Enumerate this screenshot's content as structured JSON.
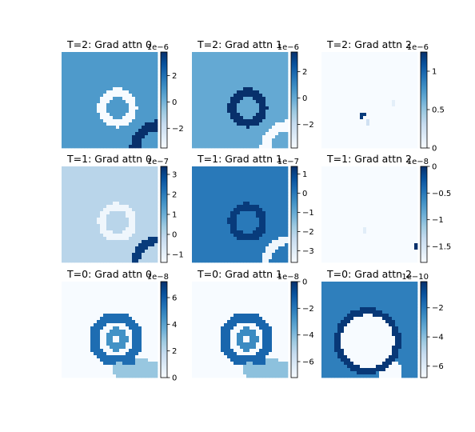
{
  "chart_data": [
    {
      "type": "heatmap",
      "title": "T=2: Grad attn 0",
      "offset": "1e−6",
      "cmap": "Blues",
      "vmin": -3.5,
      "vmax": 3.8,
      "base": 0.8,
      "ticks": [
        2,
        0,
        -2
      ],
      "features": [
        {
          "kind": "ring",
          "cx": 0.58,
          "cy": 0.58,
          "r": 0.16,
          "w": 0.045,
          "value": -3.5
        },
        {
          "kind": "arc",
          "cx": 1.04,
          "cy": 1.04,
          "r": 0.28,
          "w": 0.05,
          "value": 3.8
        }
      ]
    },
    {
      "type": "heatmap",
      "title": "T=2: Grad attn 1",
      "offset": "1e−6",
      "cmap": "Blues",
      "vmin": -3.8,
      "vmax": 3.5,
      "base": 0.0,
      "ticks": [
        2,
        0,
        -2
      ],
      "features": [
        {
          "kind": "ring",
          "cx": 0.58,
          "cy": 0.58,
          "r": 0.16,
          "w": 0.045,
          "value": 3.5
        },
        {
          "kind": "arc",
          "cx": 1.04,
          "cy": 1.04,
          "r": 0.28,
          "w": 0.05,
          "value": -3.8
        }
      ]
    },
    {
      "type": "heatmap",
      "title": "T=2: Grad attn 2",
      "offset": "1e−6",
      "cmap": "Blues",
      "vmin": 0.0,
      "vmax": 1.25,
      "base": 0.0,
      "ticks": [
        1.0,
        0.5,
        0.0
      ],
      "features": [
        {
          "kind": "dot",
          "cx": 0.43,
          "cy": 0.66,
          "r": 0.03,
          "value": 1.2
        },
        {
          "kind": "dot",
          "cx": 0.48,
          "cy": 0.73,
          "r": 0.025,
          "value": 0.25
        },
        {
          "kind": "dot",
          "cx": 0.75,
          "cy": 0.54,
          "r": 0.025,
          "value": 0.12
        }
      ]
    },
    {
      "type": "heatmap",
      "title": "T=1: Grad attn 0",
      "offset": "1e−7",
      "cmap": "Blues",
      "vmin": -1.4,
      "vmax": 3.4,
      "base": 0.0,
      "ticks": [
        3,
        2,
        1,
        0,
        -1
      ],
      "features": [
        {
          "kind": "ring",
          "cx": 0.58,
          "cy": 0.58,
          "r": 0.16,
          "w": 0.04,
          "value": -1.2
        },
        {
          "kind": "arc",
          "cx": 1.04,
          "cy": 1.04,
          "r": 0.28,
          "w": 0.045,
          "value": 3.2
        }
      ]
    },
    {
      "type": "heatmap",
      "title": "T=1: Grad attn 1",
      "offset": "1e−7",
      "cmap": "Blues",
      "vmin": -3.6,
      "vmax": 1.4,
      "base": 0.0,
      "ticks": [
        1,
        0,
        -1,
        -2,
        -3
      ],
      "features": [
        {
          "kind": "ring",
          "cx": 0.58,
          "cy": 0.58,
          "r": 0.16,
          "w": 0.04,
          "value": 1.2
        },
        {
          "kind": "arc",
          "cx": 1.04,
          "cy": 1.04,
          "r": 0.28,
          "w": 0.045,
          "value": -3.4
        }
      ]
    },
    {
      "type": "heatmap",
      "title": "T=1: Grad attn 2",
      "offset": "1e−8",
      "cmap": "Blues",
      "vmin": -1.8,
      "vmax": 0.0,
      "base": -1.8,
      "ticks": [
        0.0,
        -0.5,
        -1.0,
        -1.5
      ],
      "features": [
        {
          "kind": "dot",
          "cx": 0.99,
          "cy": 0.83,
          "r": 0.035,
          "value": 0.0
        },
        {
          "kind": "dot",
          "cx": 0.45,
          "cy": 0.66,
          "r": 0.025,
          "value": -1.6
        }
      ]
    },
    {
      "type": "heatmap",
      "title": "T=0: Grad attn 0",
      "offset": "1e−8",
      "cmap": "Blues",
      "vmin": 0.0,
      "vmax": 7.2,
      "base": 0.0,
      "ticks": [
        6,
        4,
        2,
        0
      ],
      "features": [
        {
          "kind": "ring",
          "cx": 0.57,
          "cy": 0.6,
          "r": 0.23,
          "w": 0.05,
          "value": 5.5
        },
        {
          "kind": "ring",
          "cx": 0.57,
          "cy": 0.6,
          "r": 0.08,
          "w": 0.04,
          "value": 4.5
        },
        {
          "kind": "blob",
          "cx": 0.78,
          "cy": 0.92,
          "rx": 0.26,
          "ry": 0.12,
          "value": 2.8
        },
        {
          "kind": "blob",
          "cx": 0.7,
          "cy": 0.82,
          "rx": 0.08,
          "ry": 0.05,
          "value": 5.5
        }
      ]
    },
    {
      "type": "heatmap",
      "title": "T=0: Grad attn 1",
      "offset": "1e−8",
      "cmap": "Blues",
      "vmin": -7.2,
      "vmax": 0.0,
      "base": -7.2,
      "ticks": [
        0,
        -2,
        -4,
        -6
      ],
      "features": [
        {
          "kind": "ring",
          "cx": 0.57,
          "cy": 0.6,
          "r": 0.23,
          "w": 0.05,
          "value": -1.5
        },
        {
          "kind": "ring",
          "cx": 0.57,
          "cy": 0.6,
          "r": 0.08,
          "w": 0.04,
          "value": -2.5
        },
        {
          "kind": "blob",
          "cx": 0.78,
          "cy": 0.92,
          "rx": 0.26,
          "ry": 0.12,
          "value": -4.2
        },
        {
          "kind": "blob",
          "cx": 0.7,
          "cy": 0.82,
          "rx": 0.08,
          "ry": 0.05,
          "value": -1.5
        }
      ]
    },
    {
      "type": "heatmap",
      "title": "T=0: Grad attn 2",
      "offset": "1e−10",
      "cmap": "Blues",
      "vmin": -6.8,
      "vmax": -0.2,
      "base": -2.2,
      "ticks": [
        -2,
        -4,
        -6
      ],
      "features": [
        {
          "kind": "disc",
          "cx": 0.48,
          "cy": 0.62,
          "r": 0.3,
          "value": -6.8
        },
        {
          "kind": "disc",
          "cx": 0.72,
          "cy": 0.96,
          "r": 0.13,
          "value": -6.8
        },
        {
          "kind": "ring",
          "cx": 0.48,
          "cy": 0.62,
          "r": 0.31,
          "w": 0.035,
          "value": -0.4
        }
      ]
    }
  ]
}
